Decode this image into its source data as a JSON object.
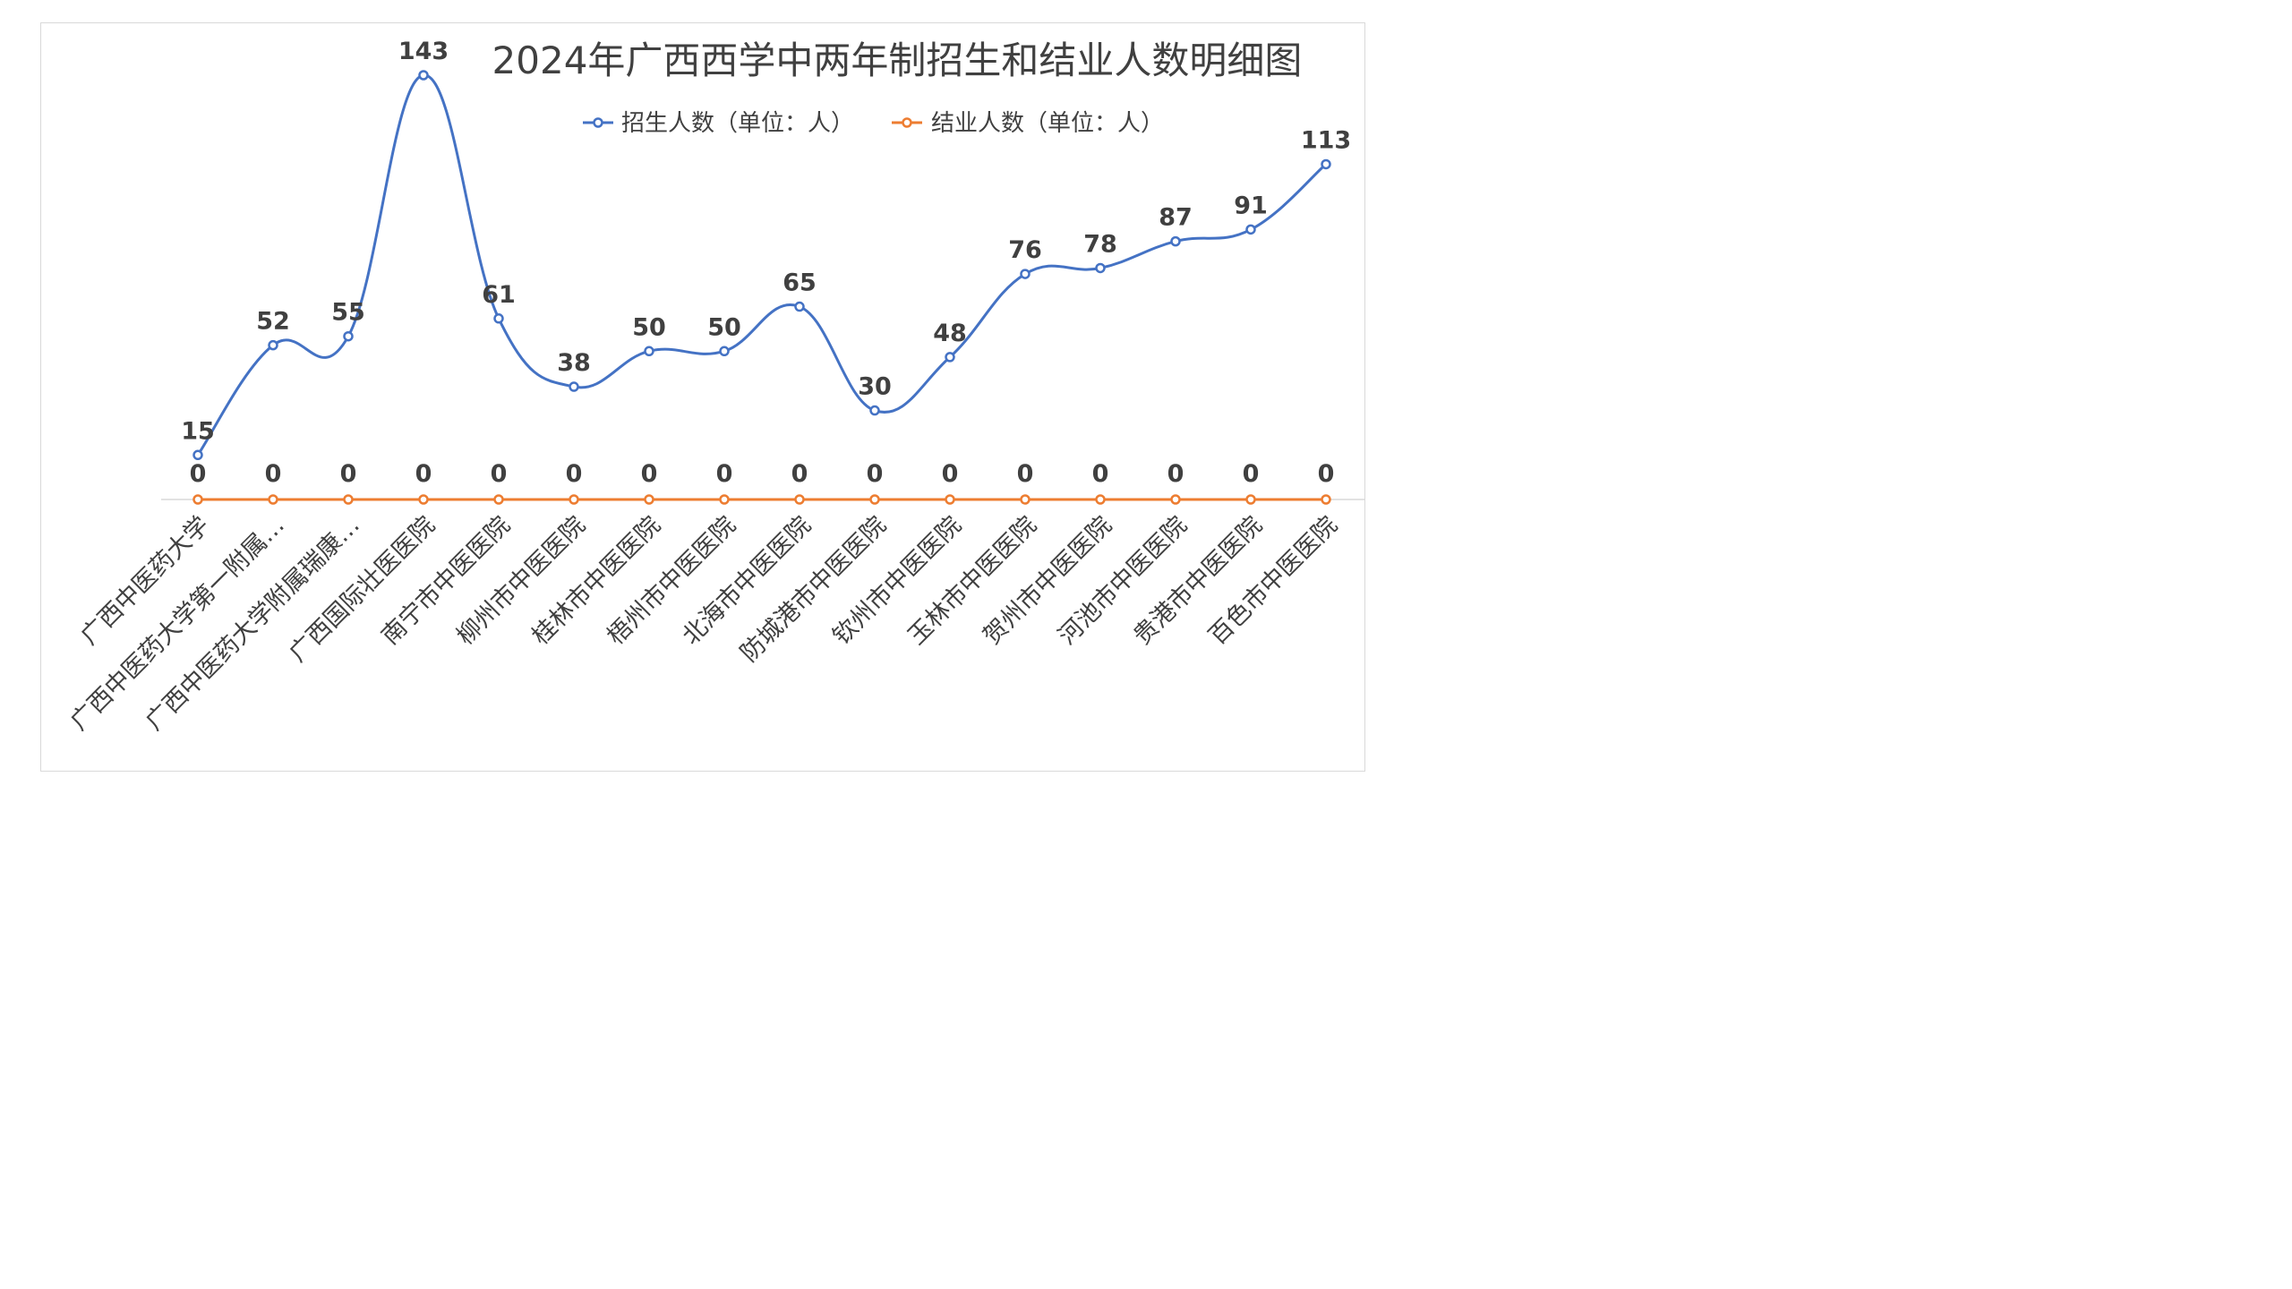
{
  "chart_data": {
    "type": "line",
    "title": "2024年广西西学中两年制招生和结业人数明细图",
    "categories": [
      "广西中医药大学",
      "广西中医药大学第一附属…",
      "广西中医药大学附属瑞康…",
      "广西国际壮医医院",
      "南宁市中医医院",
      "柳州市中医医院",
      "桂林市中医医院",
      "梧州市中医医院",
      "北海市中医医院",
      "防城港市中医医院",
      "钦州市中医医院",
      "玉林市中医医院",
      "贺州市中医医院",
      "河池市中医医院",
      "贵港市中医医院",
      "百色市中医医院"
    ],
    "series": [
      {
        "name": "招生人数（单位：人）",
        "color": "#4472c4",
        "values": [
          15,
          52,
          55,
          143,
          61,
          38,
          50,
          50,
          65,
          30,
          48,
          76,
          78,
          87,
          91,
          113
        ]
      },
      {
        "name": "结业人数（单位：人）",
        "color": "#ed7d31",
        "values": [
          0,
          0,
          0,
          0,
          0,
          0,
          0,
          0,
          0,
          0,
          0,
          0,
          0,
          0,
          0,
          0
        ]
      }
    ],
    "xlabel": "",
    "ylabel": "",
    "smooth": true,
    "grid": false,
    "legend_position": "top"
  }
}
